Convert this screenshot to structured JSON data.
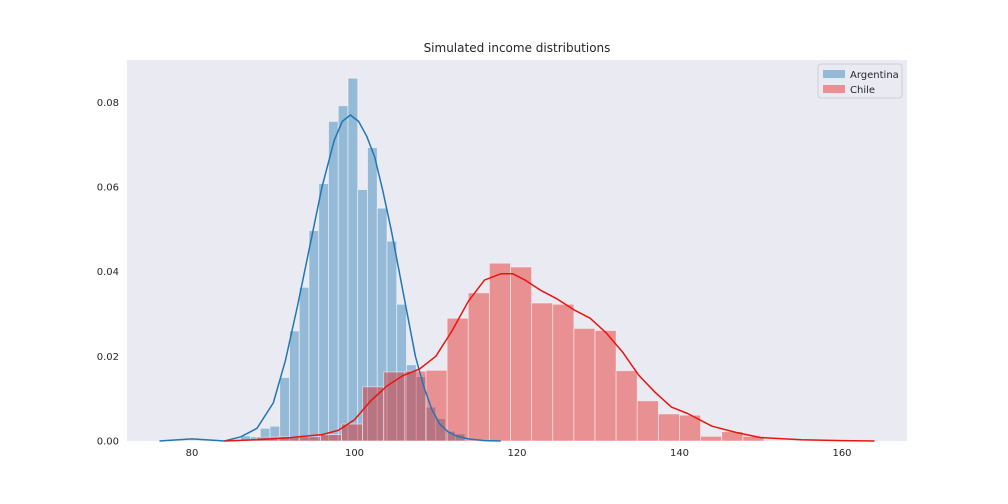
{
  "chart_data": {
    "type": "bar",
    "title": "Simulated income distributions",
    "xlabel": "",
    "ylabel": "",
    "xlim": [
      72,
      168
    ],
    "ylim": [
      0,
      0.09
    ],
    "x_ticks": [
      80,
      100,
      120,
      140,
      160
    ],
    "y_ticks": [
      0.0,
      0.02,
      0.04,
      0.06,
      0.08
    ],
    "y_tick_labels": [
      "0.00",
      "0.02",
      "0.04",
      "0.06",
      "0.08"
    ],
    "grid": false,
    "legend_position": "top-right",
    "series": [
      {
        "name": "Argentina",
        "color": "#1f77b4",
        "bins": [
          {
            "x0": 86.0,
            "x1": 87.2,
            "value": 0.0012
          },
          {
            "x0": 87.2,
            "x1": 88.4,
            "value": 0.001
          },
          {
            "x0": 88.4,
            "x1": 89.6,
            "value": 0.003
          },
          {
            "x0": 89.6,
            "x1": 90.8,
            "value": 0.0035
          },
          {
            "x0": 90.8,
            "x1": 92.0,
            "value": 0.015
          },
          {
            "x0": 92.0,
            "x1": 93.2,
            "value": 0.026
          },
          {
            "x0": 93.2,
            "x1": 94.4,
            "value": 0.0363
          },
          {
            "x0": 94.4,
            "x1": 95.6,
            "value": 0.0497
          },
          {
            "x0": 95.6,
            "x1": 96.8,
            "value": 0.0608
          },
          {
            "x0": 96.8,
            "x1": 98.0,
            "value": 0.0755
          },
          {
            "x0": 98.0,
            "x1": 99.2,
            "value": 0.0792
          },
          {
            "x0": 99.2,
            "x1": 100.4,
            "value": 0.0857
          },
          {
            "x0": 100.4,
            "x1": 101.6,
            "value": 0.0594
          },
          {
            "x0": 101.6,
            "x1": 102.8,
            "value": 0.0693
          },
          {
            "x0": 102.8,
            "x1": 104.0,
            "value": 0.055
          },
          {
            "x0": 104.0,
            "x1": 105.2,
            "value": 0.0472
          },
          {
            "x0": 105.2,
            "x1": 106.4,
            "value": 0.0323
          },
          {
            "x0": 106.4,
            "x1": 107.6,
            "value": 0.018
          },
          {
            "x0": 107.6,
            "x1": 108.8,
            "value": 0.0152
          },
          {
            "x0": 108.8,
            "x1": 110.0,
            "value": 0.008
          },
          {
            "x0": 110.0,
            "x1": 111.2,
            "value": 0.0053
          },
          {
            "x0": 111.2,
            "x1": 112.4,
            "value": 0.0023
          },
          {
            "x0": 112.4,
            "x1": 113.6,
            "value": 0.0017
          }
        ],
        "kde": {
          "x": [
            76.0,
            80.0,
            84.0,
            86.0,
            88.0,
            90.0,
            91.5,
            93.0,
            94.5,
            96.0,
            97.5,
            98.5,
            99.5,
            100.5,
            101.5,
            102.5,
            103.5,
            104.5,
            105.5,
            106.5,
            107.5,
            108.5,
            109.5,
            110.5,
            111.5,
            112.5,
            114.0,
            116.0,
            118.0
          ],
          "y": [
            0.0,
            0.0005,
            0.0,
            0.001,
            0.003,
            0.009,
            0.019,
            0.032,
            0.046,
            0.06,
            0.071,
            0.0755,
            0.077,
            0.0755,
            0.072,
            0.067,
            0.059,
            0.05,
            0.04,
            0.03,
            0.02,
            0.013,
            0.0075,
            0.004,
            0.0022,
            0.0012,
            0.0005,
            0.0001,
            0.0
          ]
        }
      },
      {
        "name": "Chile",
        "color": "#e8150f",
        "bins": [
          {
            "x0": 88.0,
            "x1": 90.6,
            "value": 0.0009
          },
          {
            "x0": 90.6,
            "x1": 93.2,
            "value": 0.001
          },
          {
            "x0": 93.2,
            "x1": 95.8,
            "value": 0.001
          },
          {
            "x0": 95.8,
            "x1": 98.4,
            "value": 0.0015
          },
          {
            "x0": 98.4,
            "x1": 101.0,
            "value": 0.004
          },
          {
            "x0": 101.0,
            "x1": 103.6,
            "value": 0.0128
          },
          {
            "x0": 103.6,
            "x1": 106.2,
            "value": 0.0163
          },
          {
            "x0": 106.2,
            "x1": 108.8,
            "value": 0.0165
          },
          {
            "x0": 108.8,
            "x1": 111.4,
            "value": 0.0167
          },
          {
            "x0": 111.4,
            "x1": 114.0,
            "value": 0.029
          },
          {
            "x0": 114.0,
            "x1": 116.6,
            "value": 0.035
          },
          {
            "x0": 116.6,
            "x1": 119.2,
            "value": 0.042
          },
          {
            "x0": 119.2,
            "x1": 121.8,
            "value": 0.0411
          },
          {
            "x0": 121.8,
            "x1": 124.4,
            "value": 0.0326
          },
          {
            "x0": 124.4,
            "x1": 127.0,
            "value": 0.0323
          },
          {
            "x0": 127.0,
            "x1": 129.6,
            "value": 0.0266
          },
          {
            "x0": 129.6,
            "x1": 132.2,
            "value": 0.0261
          },
          {
            "x0": 132.2,
            "x1": 134.8,
            "value": 0.0166
          },
          {
            "x0": 134.8,
            "x1": 137.4,
            "value": 0.0095
          },
          {
            "x0": 137.4,
            "x1": 140.0,
            "value": 0.0064
          },
          {
            "x0": 140.0,
            "x1": 142.6,
            "value": 0.0061
          },
          {
            "x0": 142.6,
            "x1": 145.2,
            "value": 0.0011
          },
          {
            "x0": 145.2,
            "x1": 147.8,
            "value": 0.0022
          },
          {
            "x0": 147.8,
            "x1": 150.4,
            "value": 0.0011
          }
        ],
        "kde": {
          "x": [
            84.0,
            88.0,
            92.0,
            96.0,
            98.0,
            100.0,
            102.0,
            104.0,
            106.0,
            108.0,
            110.0,
            112.0,
            114.0,
            116.0,
            118.0,
            119.5,
            121.0,
            123.0,
            125.0,
            127.0,
            129.0,
            131.0,
            133.0,
            135.0,
            137.0,
            139.0,
            141.0,
            144.0,
            147.0,
            150.0,
            155.0,
            160.0,
            164.0
          ],
          "y": [
            0.0,
            0.0003,
            0.0008,
            0.0015,
            0.0025,
            0.005,
            0.0095,
            0.013,
            0.0155,
            0.017,
            0.02,
            0.026,
            0.033,
            0.038,
            0.0395,
            0.0395,
            0.038,
            0.0355,
            0.0335,
            0.031,
            0.029,
            0.0255,
            0.021,
            0.0155,
            0.0115,
            0.008,
            0.0065,
            0.0035,
            0.002,
            0.0008,
            0.0003,
            0.0001,
            0.0
          ]
        }
      }
    ]
  }
}
